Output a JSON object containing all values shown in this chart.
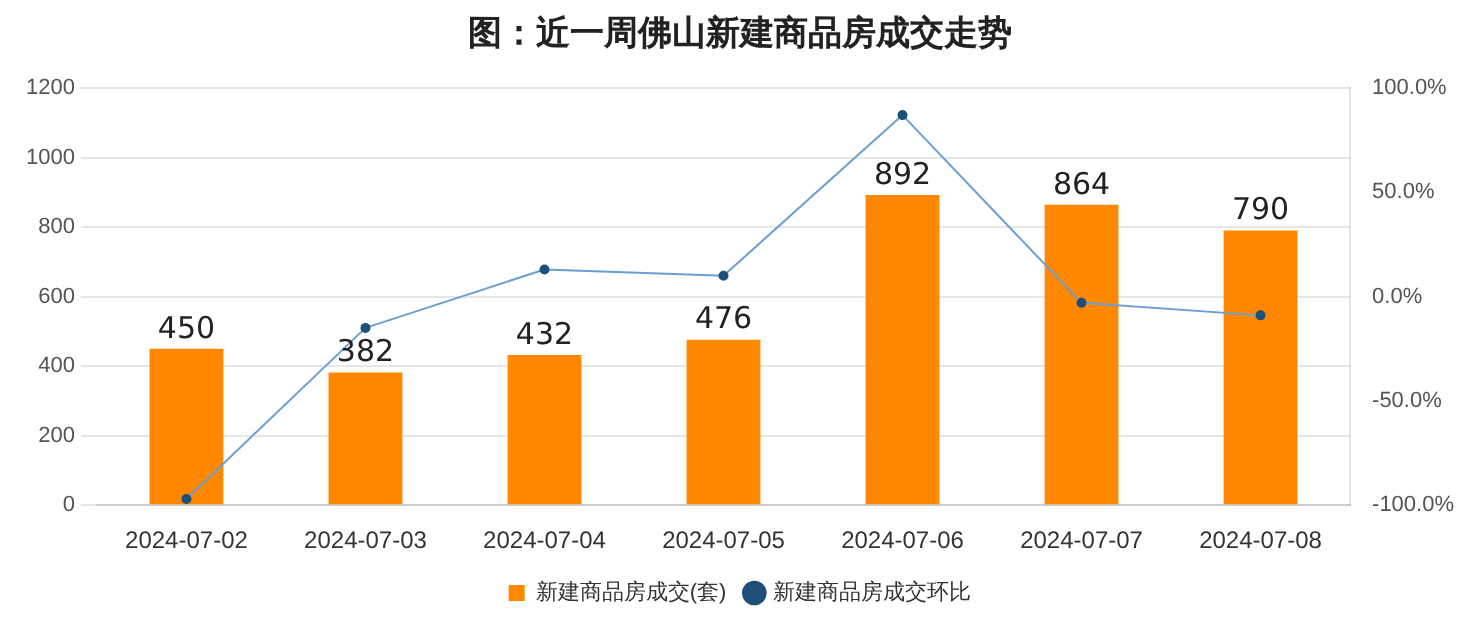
{
  "chart_data": {
    "type": "bar",
    "title": "图：近一周佛山新建商品房成交走势",
    "categories": [
      "2024-07-02",
      "2024-07-03",
      "2024-07-04",
      "2024-07-05",
      "2024-07-06",
      "2024-07-07",
      "2024-07-08"
    ],
    "series": [
      {
        "name": "新建商品房成交(套)",
        "color": "#ff8800",
        "values": [
          450,
          382,
          432,
          476,
          892,
          864,
          790
        ],
        "value_labels": [
          "450",
          "382",
          "432",
          "476",
          "892",
          "864",
          "790"
        ]
      },
      {
        "name": "新建商品房成交环比",
        "type": "line",
        "axis": "y2",
        "color": "#6a9fd4",
        "values": [
          -97,
          -15,
          13,
          10,
          87,
          -3,
          -9
        ],
        "marker": "circle"
      }
    ],
    "ylim": [
      0,
      1200
    ],
    "yticks": [
      0,
      200,
      400,
      600,
      800,
      1000,
      1200
    ],
    "y2lim": [
      -100,
      100
    ],
    "y2ticks": [
      {
        "value": -100,
        "label": "-100.0%"
      },
      {
        "value": -50,
        "label": "-50.0%"
      },
      {
        "value": 0,
        "label": "0.0%"
      },
      {
        "value": 50,
        "label": "50.0%"
      },
      {
        "value": 100,
        "label": "100.0%"
      }
    ],
    "grid": "y",
    "legend": "bottom"
  }
}
